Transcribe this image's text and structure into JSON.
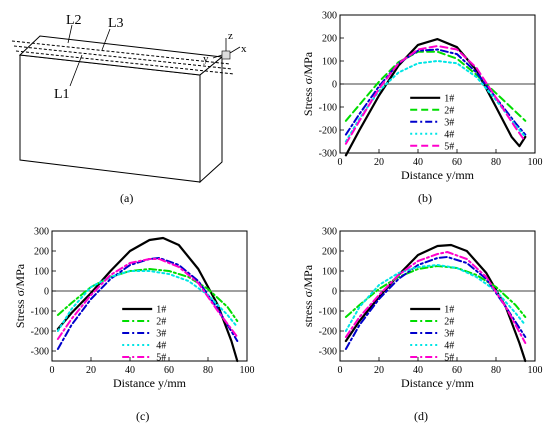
{
  "diagram": {
    "line_labels": [
      "L2",
      "L3",
      "L1"
    ],
    "axis_labels": [
      "z",
      "y",
      "x"
    ]
  },
  "panel_labels": {
    "a": "(a)",
    "b": "(b)",
    "c": "(c)",
    "d": "(d)"
  },
  "chart_data": [
    {
      "id": "b",
      "type": "line",
      "xlabel": "Distance y/mm",
      "ylabel": "Stress σ/MPa",
      "xlim": [
        0,
        100
      ],
      "ylim": [
        -300,
        300
      ],
      "xticks": [
        0,
        20,
        40,
        60,
        80,
        100
      ],
      "yticks": [
        -300,
        -200,
        -100,
        0,
        100,
        200,
        300
      ],
      "legend_position": "bottom-center",
      "series": [
        {
          "name": "1#",
          "color": "#000000",
          "dash": "solid",
          "x": [
            3,
            10,
            20,
            30,
            40,
            50,
            60,
            70,
            80,
            88,
            92,
            95
          ],
          "y": [
            -310,
            -200,
            -50,
            80,
            170,
            195,
            160,
            60,
            -100,
            -230,
            -270,
            -230
          ]
        },
        {
          "name": "2#",
          "color": "#00dd00",
          "dash": "dash",
          "x": [
            3,
            10,
            20,
            30,
            40,
            50,
            60,
            70,
            80,
            90,
            95
          ],
          "y": [
            -160,
            -90,
            10,
            95,
            140,
            140,
            110,
            40,
            -40,
            -120,
            -160
          ]
        },
        {
          "name": "3#",
          "color": "#0000cc",
          "dash": "dashdot",
          "x": [
            3,
            10,
            20,
            30,
            40,
            50,
            60,
            70,
            80,
            90,
            95
          ],
          "y": [
            -220,
            -130,
            -10,
            90,
            145,
            150,
            130,
            50,
            -60,
            -170,
            -220
          ]
        },
        {
          "name": "4#",
          "color": "#00e5e5",
          "dash": "dot",
          "x": [
            3,
            10,
            20,
            30,
            40,
            50,
            60,
            70,
            80,
            90,
            95
          ],
          "y": [
            -250,
            -150,
            -30,
            50,
            90,
            100,
            90,
            30,
            -70,
            -180,
            -230
          ]
        },
        {
          "name": "5#",
          "color": "#ff00cc",
          "dash": "dash",
          "x": [
            3,
            10,
            20,
            30,
            40,
            50,
            60,
            70,
            80,
            90,
            95
          ],
          "y": [
            -260,
            -160,
            -20,
            90,
            150,
            165,
            150,
            70,
            -60,
            -190,
            -250
          ]
        }
      ]
    },
    {
      "id": "c",
      "type": "line",
      "xlabel": "Distance y/mm",
      "ylabel": "Stress σ/MPa",
      "xlim": [
        0,
        100
      ],
      "ylim": [
        -350,
        300
      ],
      "xticks": [
        0,
        20,
        40,
        60,
        80,
        100
      ],
      "yticks": [
        -300,
        -200,
        -100,
        0,
        100,
        200,
        300
      ],
      "legend_position": "bottom-center",
      "series": [
        {
          "name": "1#",
          "color": "#000000",
          "dash": "solid",
          "x": [
            3,
            10,
            20,
            30,
            40,
            50,
            57,
            65,
            75,
            85,
            92,
            95
          ],
          "y": [
            -190,
            -110,
            -10,
            100,
            200,
            255,
            265,
            230,
            110,
            -70,
            -250,
            -350
          ]
        },
        {
          "name": "2#",
          "color": "#00dd00",
          "dash": "dashdot",
          "x": [
            3,
            10,
            20,
            30,
            40,
            50,
            60,
            70,
            80,
            90,
            95
          ],
          "y": [
            -120,
            -60,
            20,
            70,
            100,
            110,
            100,
            70,
            10,
            -80,
            -150
          ]
        },
        {
          "name": "3#",
          "color": "#0000cc",
          "dash": "dashdot",
          "x": [
            3,
            10,
            20,
            30,
            40,
            50,
            55,
            65,
            75,
            85,
            95
          ],
          "y": [
            -290,
            -170,
            -40,
            60,
            130,
            160,
            165,
            130,
            50,
            -90,
            -250
          ]
        },
        {
          "name": "4#",
          "color": "#00e5e5",
          "dash": "dot",
          "x": [
            3,
            10,
            20,
            30,
            40,
            50,
            60,
            70,
            80,
            90,
            95
          ],
          "y": [
            -200,
            -90,
            20,
            70,
            100,
            100,
            85,
            50,
            -20,
            -120,
            -180
          ]
        },
        {
          "name": "5#",
          "color": "#ff00cc",
          "dash": "dashdot",
          "x": [
            3,
            10,
            20,
            30,
            40,
            50,
            55,
            65,
            75,
            85,
            95
          ],
          "y": [
            -240,
            -140,
            -20,
            80,
            140,
            160,
            160,
            120,
            40,
            -100,
            -230
          ]
        }
      ]
    },
    {
      "id": "d",
      "type": "line",
      "xlabel": "Distance y/mm",
      "ylabel": "stress σ/MPa",
      "xlim": [
        0,
        100
      ],
      "ylim": [
        -350,
        300
      ],
      "xticks": [
        0,
        20,
        40,
        60,
        80,
        100
      ],
      "yticks": [
        -300,
        -200,
        -100,
        0,
        100,
        200,
        300
      ],
      "legend_position": "bottom-center",
      "series": [
        {
          "name": "1#",
          "color": "#000000",
          "dash": "solid",
          "x": [
            3,
            10,
            20,
            30,
            40,
            50,
            57,
            65,
            75,
            85,
            92,
            95
          ],
          "y": [
            -250,
            -150,
            -30,
            80,
            180,
            225,
            230,
            200,
            90,
            -80,
            -260,
            -350
          ]
        },
        {
          "name": "2#",
          "color": "#00dd00",
          "dash": "dashdot",
          "x": [
            3,
            10,
            20,
            30,
            40,
            50,
            60,
            70,
            80,
            90,
            95
          ],
          "y": [
            -130,
            -70,
            10,
            70,
            110,
            125,
            115,
            80,
            20,
            -70,
            -130
          ]
        },
        {
          "name": "3#",
          "color": "#0000cc",
          "dash": "dashdot",
          "x": [
            3,
            10,
            20,
            30,
            40,
            50,
            55,
            65,
            75,
            85,
            95
          ],
          "y": [
            -290,
            -170,
            -40,
            60,
            130,
            165,
            170,
            140,
            60,
            -80,
            -230
          ]
        },
        {
          "name": "4#",
          "color": "#00e5e5",
          "dash": "dot",
          "x": [
            3,
            10,
            20,
            30,
            40,
            50,
            60,
            70,
            80,
            90,
            95
          ],
          "y": [
            -200,
            -80,
            30,
            90,
            120,
            130,
            115,
            70,
            0,
            -110,
            -170
          ]
        },
        {
          "name": "5#",
          "color": "#ff00cc",
          "dash": "dashdot",
          "x": [
            3,
            10,
            20,
            30,
            40,
            50,
            55,
            65,
            75,
            85,
            95
          ],
          "y": [
            -230,
            -130,
            -20,
            80,
            150,
            185,
            195,
            160,
            70,
            -80,
            -260
          ]
        }
      ]
    }
  ]
}
